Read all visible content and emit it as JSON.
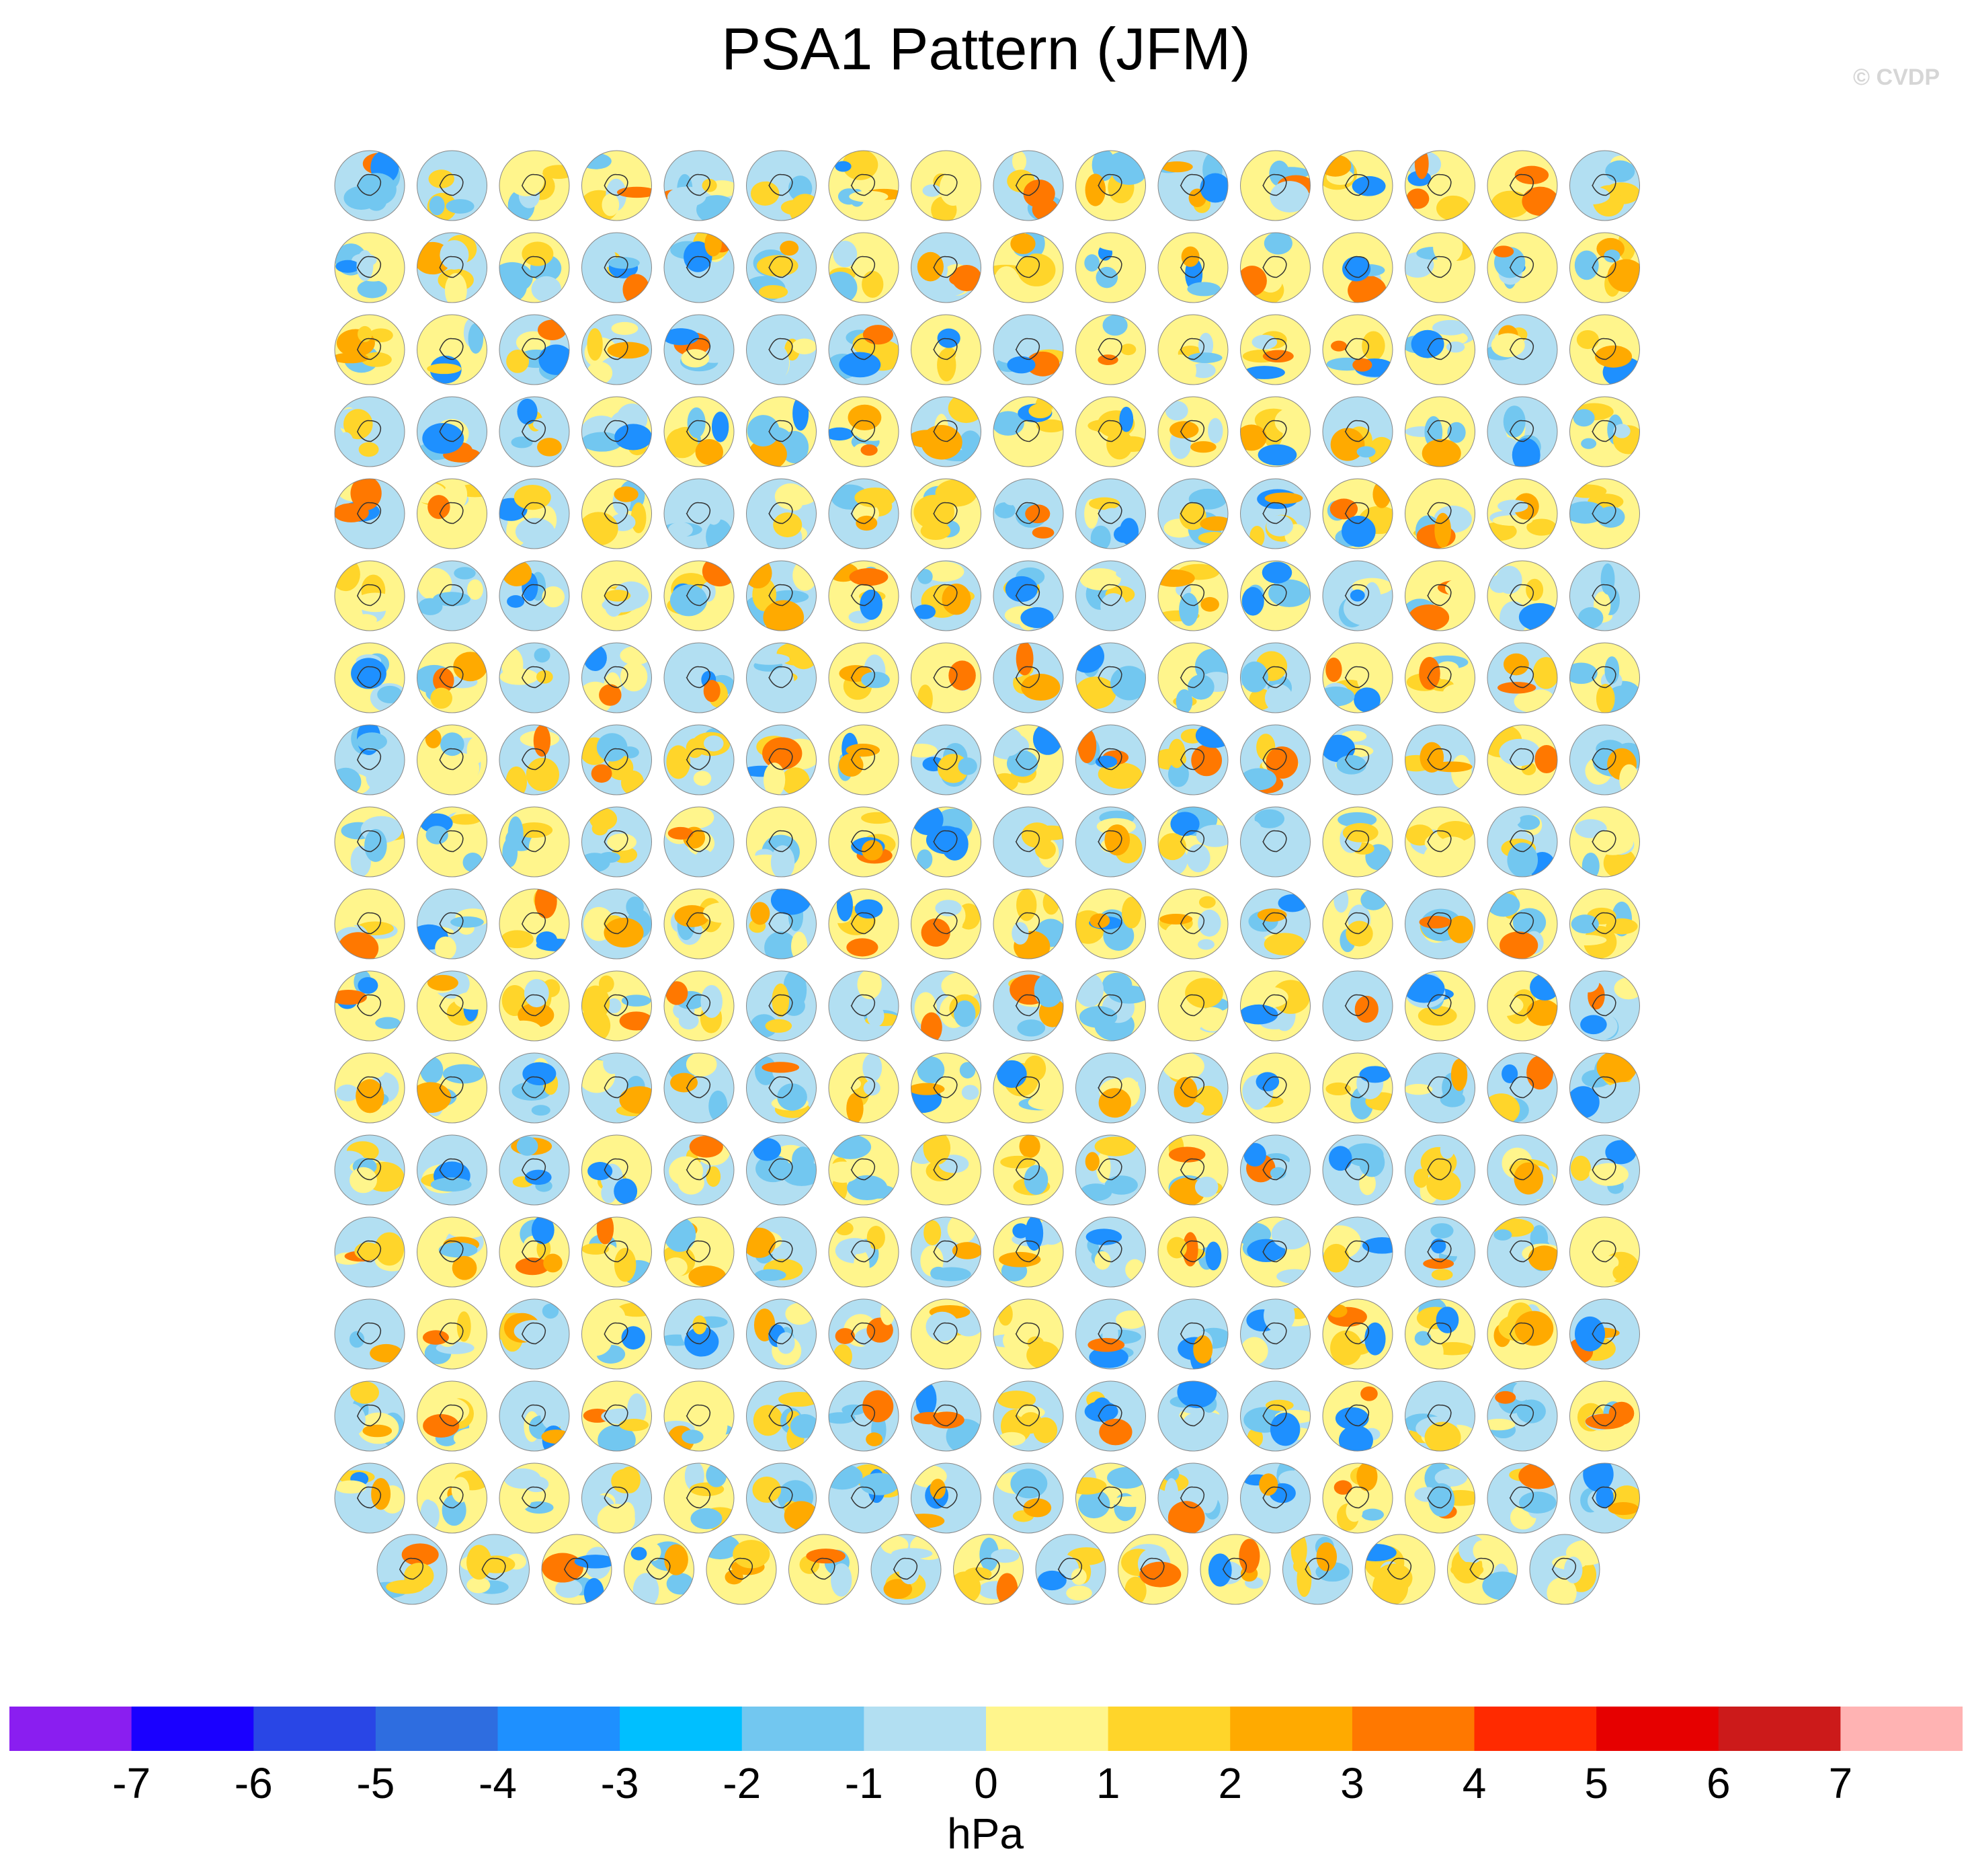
{
  "title": "PSA1 Pattern (JFM)",
  "watermark": "© CVDP",
  "chart_data": {
    "type": "heatmap",
    "description_kind": "small-multiples polar stereographic maps",
    "panel_grid": {
      "rows_full": 17,
      "cols_full": 16,
      "last_row_count": 15
    },
    "colorbar": {
      "label": "hPa",
      "ticks": [
        "-7",
        "-6",
        "-5",
        "-4",
        "-3",
        "-2",
        "-1",
        "0",
        "1",
        "2",
        "3",
        "4",
        "5",
        "6",
        "7"
      ],
      "colors": [
        "#8a1ef0",
        "#1a00ff",
        "#2946e6",
        "#2e6de0",
        "#1e90ff",
        "#00bfff",
        "#72c7f0",
        "#b2dff2",
        "#fff58c",
        "#ffd52a",
        "#ffaa00",
        "#ff7800",
        "#ff2a00",
        "#e60000",
        "#cc1a1a",
        "#ffb3b3"
      ]
    },
    "legend_position": "bottom"
  }
}
